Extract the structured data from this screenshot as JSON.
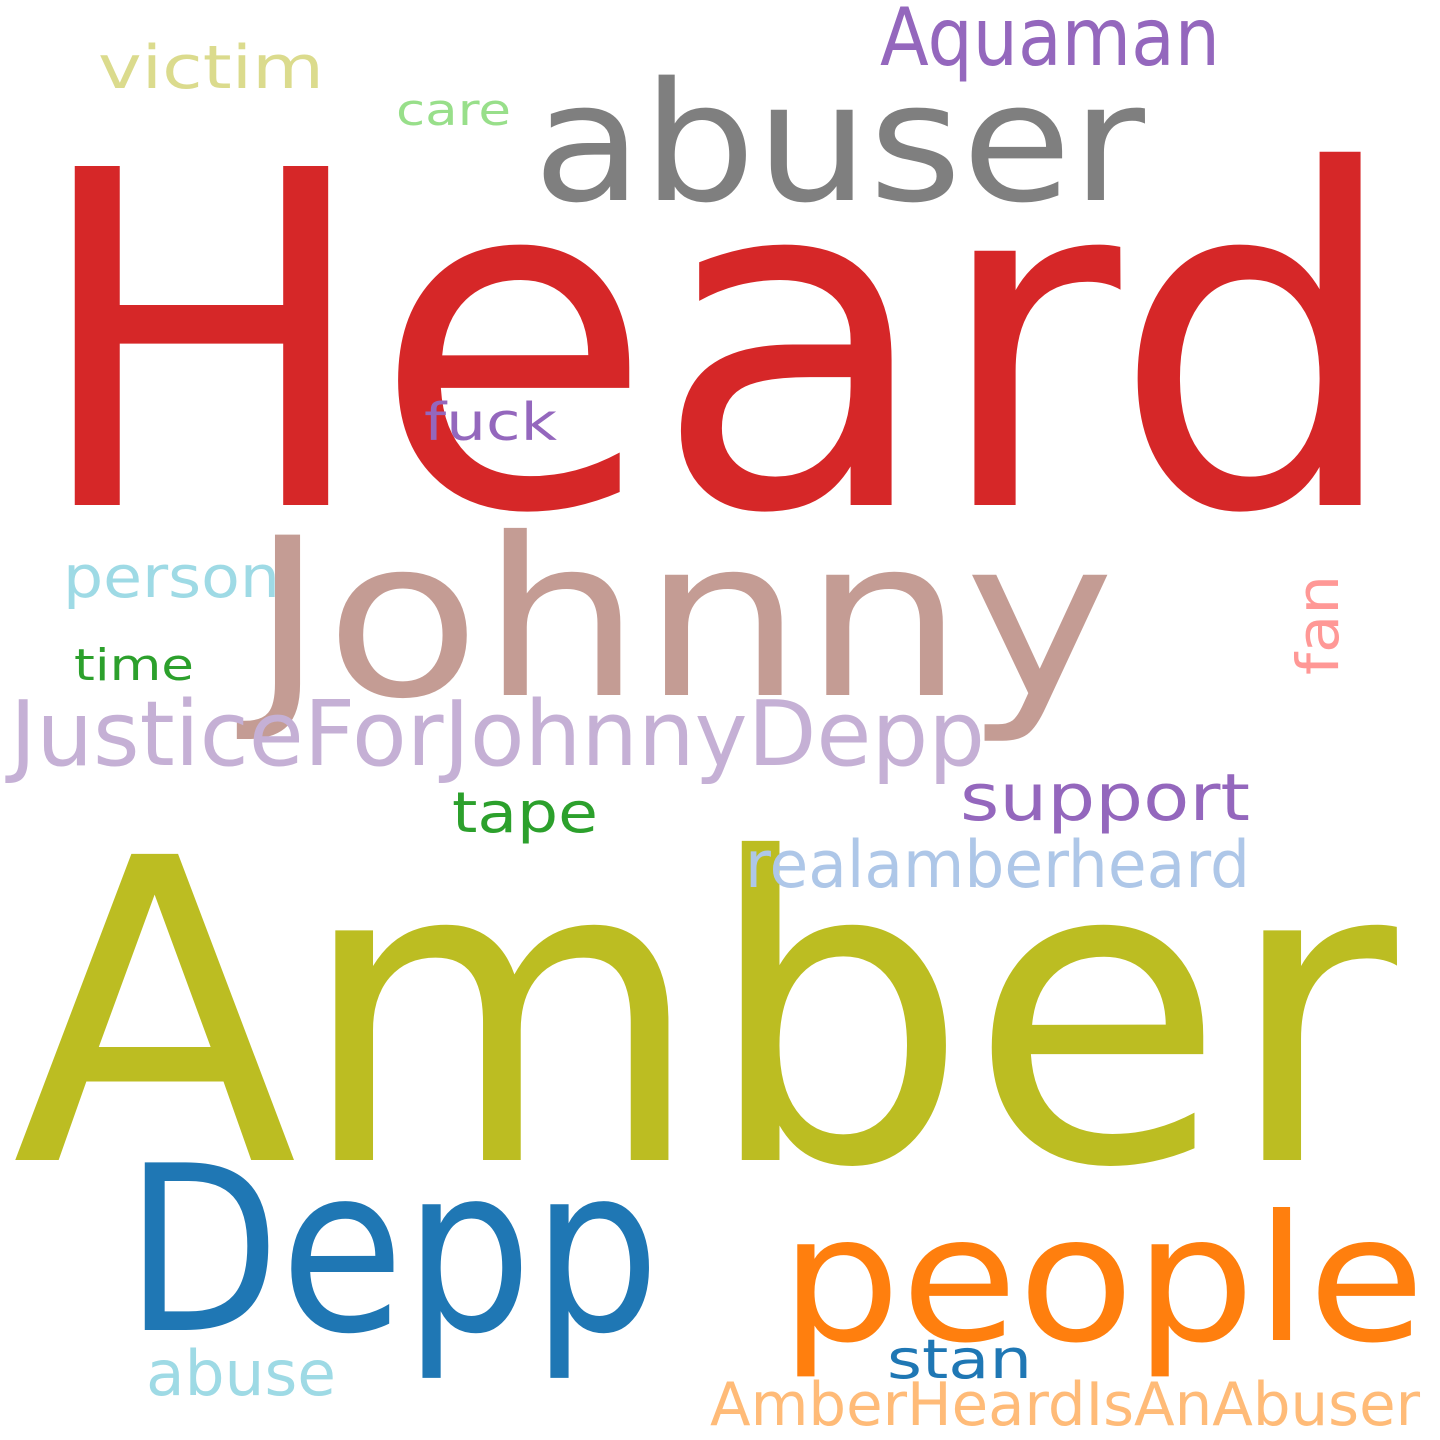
{
  "word_cloud": {
    "words": [
      {
        "text": "Heard",
        "color": "#d62728"
      },
      {
        "text": "Amber",
        "color": "#bcbd22"
      },
      {
        "text": "Johnny",
        "color": "#c49c94"
      },
      {
        "text": "abuser",
        "color": "#7f7f7f"
      },
      {
        "text": "Depp",
        "color": "#1f77b4"
      },
      {
        "text": "people",
        "color": "#ff7f0e"
      },
      {
        "text": "JusticeForJohnnyDepp",
        "color": "#c5b0d5"
      },
      {
        "text": "Aquaman",
        "color": "#9467bd"
      },
      {
        "text": "support",
        "color": "#9467bd"
      },
      {
        "text": "realamberheard",
        "color": "#aec7e8"
      },
      {
        "text": "AmberHeardIsAnAbuser",
        "color": "#ffbb78"
      },
      {
        "text": "victim",
        "color": "#dbdb8d"
      },
      {
        "text": "person",
        "color": "#9edae5"
      },
      {
        "text": "abuse",
        "color": "#9edae5"
      },
      {
        "text": "tape",
        "color": "#2ca02c"
      },
      {
        "text": "stan",
        "color": "#1f77b4"
      },
      {
        "text": "fuck",
        "color": "#9467bd"
      },
      {
        "text": "care",
        "color": "#98df8a"
      },
      {
        "text": "time",
        "color": "#2ca02c"
      },
      {
        "text": "fan",
        "color": "#ff9896"
      }
    ]
  }
}
